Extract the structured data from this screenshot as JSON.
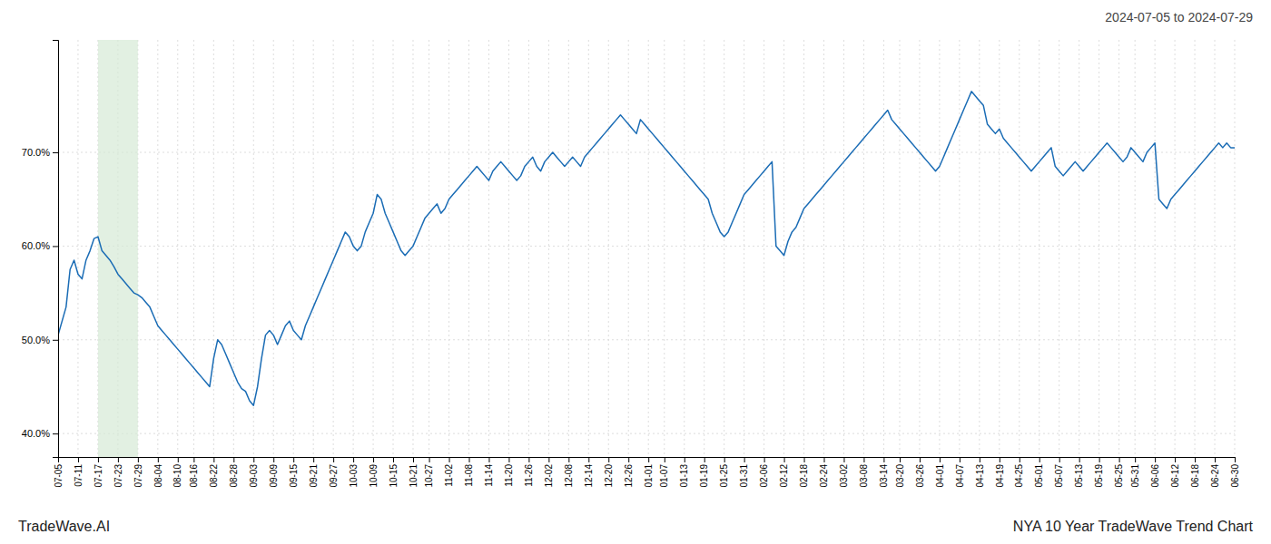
{
  "chart_data": {
    "type": "line",
    "title": "NYA 10 Year TradeWave Trend Chart",
    "subtitle": "2024-07-05 to 2024-07-29",
    "annotations": [
      "TradeWave.AI"
    ],
    "color": "#1a6cb5",
    "grid": true,
    "ylim": [
      37.5,
      82.0
    ],
    "yticks": [
      {
        "value": 40.0,
        "label": "40.0%"
      },
      {
        "value": 50.0,
        "label": "50.0%"
      },
      {
        "value": 60.0,
        "label": "60.0%"
      },
      {
        "value": 70.0,
        "label": "70.0%"
      }
    ],
    "highlight": {
      "start": "07-17",
      "end": "07-29",
      "color": "#d6ead6"
    },
    "categories": [
      "07-05",
      null,
      null,
      null,
      null,
      "07-11",
      null,
      null,
      null,
      null,
      "07-17",
      null,
      null,
      null,
      null,
      "07-23",
      null,
      null,
      null,
      null,
      "07-29",
      null,
      null,
      null,
      null,
      "08-04",
      null,
      null,
      null,
      null,
      "08-10",
      null,
      null,
      null,
      "08-16",
      null,
      null,
      null,
      null,
      "08-22",
      null,
      null,
      null,
      null,
      "08-28",
      null,
      null,
      null,
      null,
      "09-03",
      null,
      null,
      null,
      null,
      "09-09",
      null,
      null,
      null,
      null,
      "09-15",
      null,
      null,
      null,
      null,
      "09-21",
      null,
      null,
      null,
      null,
      "09-27",
      null,
      null,
      null,
      null,
      "10-03",
      null,
      null,
      null,
      null,
      "10-09",
      null,
      null,
      null,
      null,
      "10-15",
      null,
      null,
      null,
      null,
      "10-21",
      null,
      null,
      null,
      "10-27",
      null,
      null,
      null,
      null,
      "11-02",
      null,
      null,
      null,
      null,
      "11-08",
      null,
      null,
      null,
      null,
      "11-14",
      null,
      null,
      null,
      null,
      "11-20",
      null,
      null,
      null,
      null,
      "11-26",
      null,
      null,
      null,
      null,
      "12-02",
      null,
      null,
      null,
      null,
      "12-08",
      null,
      null,
      null,
      null,
      "12-14",
      null,
      null,
      null,
      null,
      "12-20",
      null,
      null,
      null,
      null,
      "12-26",
      null,
      null,
      null,
      null,
      "01-01",
      null,
      null,
      null,
      "01-07",
      null,
      null,
      null,
      null,
      "01-13",
      null,
      null,
      null,
      null,
      "01-19",
      null,
      null,
      null,
      null,
      "01-25",
      null,
      null,
      null,
      null,
      "01-31",
      null,
      null,
      null,
      null,
      "02-06",
      null,
      null,
      null,
      null,
      "02-12",
      null,
      null,
      null,
      null,
      "02-18",
      null,
      null,
      null,
      null,
      "02-24",
      null,
      null,
      null,
      null,
      "03-02",
      null,
      null,
      null,
      null,
      "03-08",
      null,
      null,
      null,
      null,
      "03-14",
      null,
      null,
      null,
      "03-20",
      null,
      null,
      null,
      null,
      "03-26",
      null,
      null,
      null,
      null,
      "04-01",
      null,
      null,
      null,
      null,
      "04-07",
      null,
      null,
      null,
      null,
      "04-13",
      null,
      null,
      null,
      null,
      "04-19",
      null,
      null,
      null,
      null,
      "04-25",
      null,
      null,
      null,
      null,
      "05-01",
      null,
      null,
      null,
      null,
      "05-07",
      null,
      null,
      null,
      null,
      "05-13",
      null,
      null,
      null,
      null,
      "05-19",
      null,
      null,
      null,
      null,
      "05-25",
      null,
      null,
      null,
      "05-31",
      null,
      null,
      null,
      null,
      "06-06",
      null,
      null,
      null,
      null,
      "06-12",
      null,
      null,
      null,
      null,
      "06-18",
      null,
      null,
      null,
      null,
      "06-24",
      null,
      null,
      null,
      null,
      "06-30"
    ],
    "values": [
      50.5,
      52.0,
      53.5,
      57.5,
      58.5,
      57.0,
      56.5,
      58.5,
      59.5,
      60.8,
      61.0,
      59.5,
      59.0,
      58.5,
      57.8,
      57.0,
      56.5,
      56.0,
      55.5,
      55.0,
      54.8,
      54.5,
      54.0,
      53.5,
      52.5,
      51.5,
      51.0,
      50.5,
      50.0,
      49.5,
      49.0,
      48.5,
      48.0,
      47.5,
      47.0,
      46.5,
      46.0,
      45.5,
      45.0,
      48.0,
      50.0,
      49.5,
      48.5,
      47.5,
      46.5,
      45.5,
      44.8,
      44.5,
      43.5,
      43.0,
      45.0,
      48.0,
      50.5,
      51.0,
      50.5,
      49.5,
      50.5,
      51.5,
      52.0,
      51.0,
      50.5,
      50.0,
      51.5,
      52.5,
      53.5,
      54.5,
      55.5,
      56.5,
      57.5,
      58.5,
      59.5,
      60.5,
      61.5,
      61.0,
      60.0,
      59.5,
      60.0,
      61.5,
      62.5,
      63.5,
      65.5,
      65.0,
      63.5,
      62.5,
      61.5,
      60.5,
      59.5,
      59.0,
      59.5,
      60.0,
      61.0,
      62.0,
      63.0,
      63.5,
      64.0,
      64.5,
      63.5,
      64.0,
      65.0,
      65.5,
      66.0,
      66.5,
      67.0,
      67.5,
      68.0,
      68.5,
      68.0,
      67.5,
      67.0,
      68.0,
      68.5,
      69.0,
      68.5,
      68.0,
      67.5,
      67.0,
      67.5,
      68.5,
      69.0,
      69.5,
      68.5,
      68.0,
      69.0,
      69.5,
      70.0,
      69.5,
      69.0,
      68.5,
      69.0,
      69.5,
      69.0,
      68.5,
      69.5,
      70.0,
      70.5,
      71.0,
      71.5,
      72.0,
      72.5,
      73.0,
      73.5,
      74.0,
      73.5,
      73.0,
      72.5,
      72.0,
      73.5,
      73.0,
      72.5,
      72.0,
      71.5,
      71.0,
      70.5,
      70.0,
      69.5,
      69.0,
      68.5,
      68.0,
      67.5,
      67.0,
      66.5,
      66.0,
      65.5,
      65.0,
      63.5,
      62.5,
      61.5,
      61.0,
      61.5,
      62.5,
      63.5,
      64.5,
      65.5,
      66.0,
      66.5,
      67.0,
      67.5,
      68.0,
      68.5,
      69.0,
      60.0,
      59.5,
      59.0,
      60.5,
      61.5,
      62.0,
      63.0,
      64.0,
      64.5,
      65.0,
      65.5,
      66.0,
      66.5,
      67.0,
      67.5,
      68.0,
      68.5,
      69.0,
      69.5,
      70.0,
      70.5,
      71.0,
      71.5,
      72.0,
      72.5,
      73.0,
      73.5,
      74.0,
      74.5,
      73.5,
      73.0,
      72.5,
      72.0,
      71.5,
      71.0,
      70.5,
      70.0,
      69.5,
      69.0,
      68.5,
      68.0,
      68.5,
      69.5,
      70.5,
      71.5,
      72.5,
      73.5,
      74.5,
      75.5,
      76.5,
      76.0,
      75.5,
      75.0,
      73.0,
      72.5,
      72.0,
      72.5,
      71.5,
      71.0,
      70.5,
      70.0,
      69.5,
      69.0,
      68.5,
      68.0,
      68.5,
      69.0,
      69.5,
      70.0,
      70.5,
      68.5,
      68.0,
      67.5,
      68.0,
      68.5,
      69.0,
      68.5,
      68.0,
      68.5,
      69.0,
      69.5,
      70.0,
      70.5,
      71.0,
      70.5,
      70.0,
      69.5,
      69.0,
      69.5,
      70.5,
      70.0,
      69.5,
      69.0,
      70.0,
      70.5,
      71.0,
      65.0,
      64.5,
      64.0,
      65.0,
      65.5,
      66.0,
      66.5,
      67.0,
      67.5,
      68.0,
      68.5,
      69.0,
      69.5,
      70.0,
      70.5,
      71.0,
      70.5,
      71.0,
      70.5,
      70.5
    ]
  }
}
